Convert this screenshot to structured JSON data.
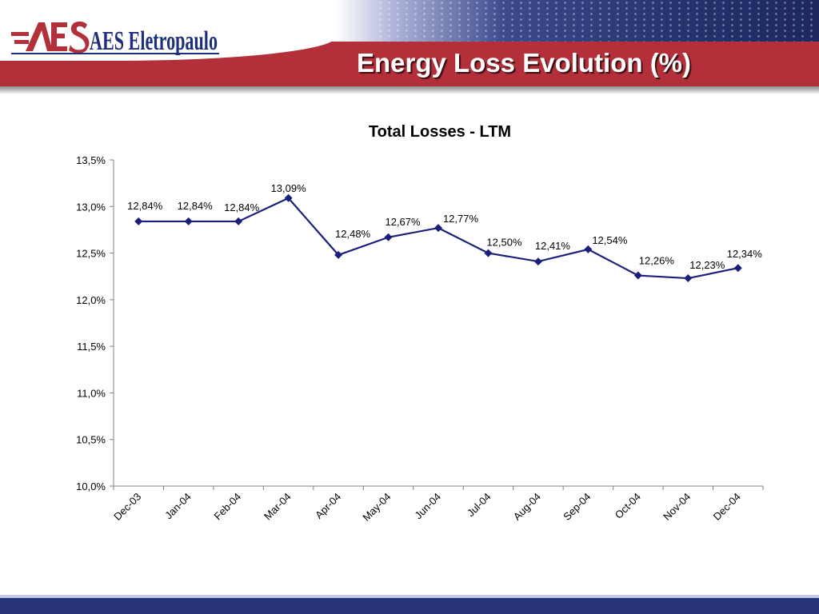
{
  "header": {
    "logo_text": "AES Eletropaulo",
    "title": "Energy Loss Evolution (%)"
  },
  "colors": {
    "brand_red": "#b3303a",
    "brand_blue": "#27347a",
    "series": "#1a1f7a"
  },
  "chart_data": {
    "type": "line",
    "title": "Total Losses - LTM",
    "xlabel": "",
    "ylabel": "",
    "categories": [
      "Dec-03",
      "Jan-04",
      "Feb-04",
      "Mar-04",
      "Apr-04",
      "May-04",
      "Jun-04",
      "Jul-04",
      "Aug-04",
      "Sep-04",
      "Oct-04",
      "Nov-04",
      "Dec-04"
    ],
    "series": [
      {
        "values": [
          12.84,
          12.84,
          12.84,
          13.09,
          12.48,
          12.67,
          12.77,
          12.5,
          12.41,
          12.54,
          12.26,
          12.23,
          12.34
        ],
        "labels": [
          "12,84%",
          "12,84%",
          "12,84%",
          "13,09%",
          "12,48%",
          "12,67%",
          "12,77%",
          "12,50%",
          "12,41%",
          "12,54%",
          "12,26%",
          "12,23%",
          "12,34%"
        ]
      }
    ],
    "ylim": [
      10.0,
      13.5
    ],
    "yticks": [
      10.0,
      10.5,
      11.0,
      11.5,
      12.0,
      12.5,
      13.0,
      13.5
    ],
    "ytick_labels": [
      "10,0%",
      "10,5%",
      "11,0%",
      "11,5%",
      "12,0%",
      "12,5%",
      "13,0%",
      "13,5%"
    ],
    "grid": false,
    "legend": "none"
  }
}
